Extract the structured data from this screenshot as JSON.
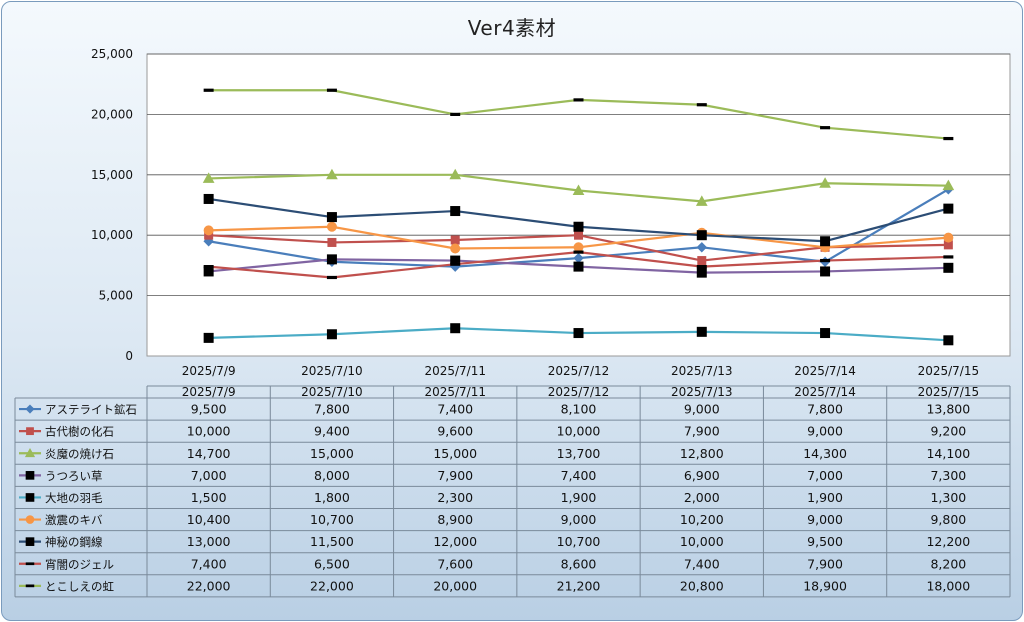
{
  "chart_data": {
    "type": "line",
    "title": "Ver4素材",
    "categories": [
      "2025/7/9",
      "2025/7/10",
      "2025/7/11",
      "2025/7/12",
      "2025/7/13",
      "2025/7/14",
      "2025/7/15"
    ],
    "y_ticks": [
      "0",
      "5,000",
      "10,000",
      "15,000",
      "20,000",
      "25,000"
    ],
    "ylim": [
      0,
      25000
    ],
    "grid": true,
    "legend": "data-table",
    "series": [
      {
        "name": "アステライト鉱石",
        "color": "#4a7ebb",
        "marker": "diamond",
        "values": [
          9500,
          7800,
          7400,
          8100,
          9000,
          7800,
          13800
        ],
        "labels": [
          "9,500",
          "7,800",
          "7,400",
          "8,100",
          "9,000",
          "7,800",
          "13,800"
        ]
      },
      {
        "name": "古代樹の化石",
        "color": "#c0504d",
        "marker": "square",
        "values": [
          10000,
          9400,
          9600,
          10000,
          7900,
          9000,
          9200
        ],
        "labels": [
          "10,000",
          "9,400",
          "9,600",
          "10,000",
          "7,900",
          "9,000",
          "9,200"
        ]
      },
      {
        "name": "炎魔の焼け石",
        "color": "#9bbb59",
        "marker": "triangle",
        "values": [
          14700,
          15000,
          15000,
          13700,
          12800,
          14300,
          14100
        ],
        "labels": [
          "14,700",
          "15,000",
          "15,000",
          "13,700",
          "12,800",
          "14,300",
          "14,100"
        ]
      },
      {
        "name": "うつろい草",
        "color": "#8064a2",
        "marker": "blacksquare",
        "values": [
          7000,
          8000,
          7900,
          7400,
          6900,
          7000,
          7300
        ],
        "labels": [
          "7,000",
          "8,000",
          "7,900",
          "7,400",
          "6,900",
          "7,000",
          "7,300"
        ]
      },
      {
        "name": "大地の羽毛",
        "color": "#4bacc6",
        "marker": "blacksquare",
        "values": [
          1500,
          1800,
          2300,
          1900,
          2000,
          1900,
          1300
        ],
        "labels": [
          "1,500",
          "1,800",
          "2,300",
          "1,900",
          "2,000",
          "1,900",
          "1,300"
        ]
      },
      {
        "name": "激震のキバ",
        "color": "#f79646",
        "marker": "circle",
        "values": [
          10400,
          10700,
          8900,
          9000,
          10200,
          9000,
          9800
        ],
        "labels": [
          "10,400",
          "10,700",
          "8,900",
          "9,000",
          "10,200",
          "9,000",
          "9,800"
        ]
      },
      {
        "name": "神秘の鋼線",
        "color": "#2c4d75",
        "marker": "blacksquare",
        "values": [
          13000,
          11500,
          12000,
          10700,
          10000,
          9500,
          12200
        ],
        "labels": [
          "13,000",
          "11,500",
          "12,000",
          "10,700",
          "10,000",
          "9,500",
          "12,200"
        ]
      },
      {
        "name": "宵闇のジェル",
        "color": "#c0504d",
        "marker": "dash",
        "values": [
          7400,
          6500,
          7600,
          8600,
          7400,
          7900,
          8200
        ],
        "labels": [
          "7,400",
          "6,500",
          "7,600",
          "8,600",
          "7,400",
          "7,900",
          "8,200"
        ]
      },
      {
        "name": "とこしえの虹",
        "color": "#9bbb59",
        "marker": "dash",
        "values": [
          22000,
          22000,
          20000,
          21200,
          20800,
          18900,
          18000
        ],
        "labels": [
          "22,000",
          "22,000",
          "20,000",
          "21,200",
          "20,800",
          "18,900",
          "18,000"
        ]
      }
    ]
  }
}
